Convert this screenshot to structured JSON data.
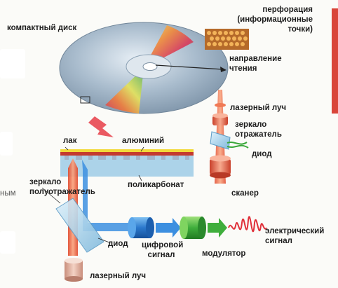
{
  "labels": {
    "cd": "компактный диск",
    "perforation_1": "перфорация",
    "perforation_2": "(информационные",
    "perforation_3": "точки)",
    "reading_dir_1": "направление",
    "reading_dir_2": "чтения",
    "laser_beam_top": "лазерный луч",
    "mirror_1": "зеркало",
    "mirror_2": "отражатель",
    "diode_right": "диод",
    "scanner": "сканер",
    "lacquer": "лак",
    "aluminum": "алюминий",
    "polycarbonate": "поликарбонат",
    "semi_mirror_1": "зеркало",
    "semi_mirror_2": "полуотражатель",
    "cut_word": "ным",
    "diode_bottom": "диод",
    "digital_1": "цифровой",
    "digital_2": "сигнал",
    "modulator": "модулятор",
    "electric_1": "электрический",
    "electric_2": "сигнал",
    "laser_beam_bottom": "лазерный луч"
  },
  "colors": {
    "disc": "#8fa6ba",
    "laser": "#e85a3a",
    "lacquer": "#f2d83a",
    "aluminum": "#c43a2e",
    "polycarbonate": "#9ecbe6",
    "digital_signal": "#2f7fd0",
    "modulator": "#3fae3c",
    "electric_signal": "#e0303a",
    "accent_arrow": "#e8525a"
  }
}
